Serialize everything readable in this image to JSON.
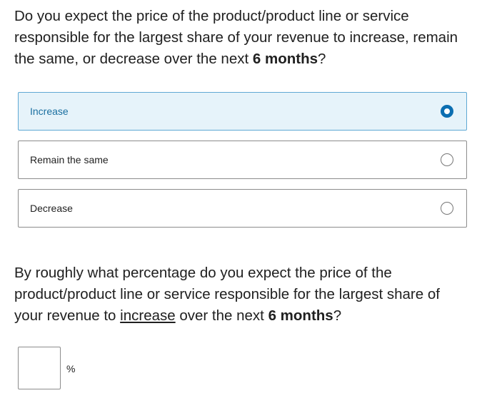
{
  "question1": {
    "text_before": "Do you expect the price of the product/product line or service responsible for the largest share of your revenue to increase, remain the same, or decrease over the next ",
    "emphasis": "6 months",
    "text_after": "?"
  },
  "options": [
    {
      "label": "Increase",
      "selected": true
    },
    {
      "label": "Remain the same",
      "selected": false
    },
    {
      "label": "Decrease",
      "selected": false
    }
  ],
  "question2": {
    "text_before": "By roughly what percentage do you expect the price of the product/product line or service responsible for the largest share of your revenue to ",
    "underlined": "increase",
    "text_middle": " over the next ",
    "emphasis": "6 months",
    "text_after": "?"
  },
  "percentage_input": {
    "value": "",
    "unit": "%"
  },
  "colors": {
    "selected_background": "#e6f3fa",
    "selected_border": "#5fa8d3",
    "selected_text": "#1a6fa0",
    "radio_accent": "#0b6eb1"
  }
}
